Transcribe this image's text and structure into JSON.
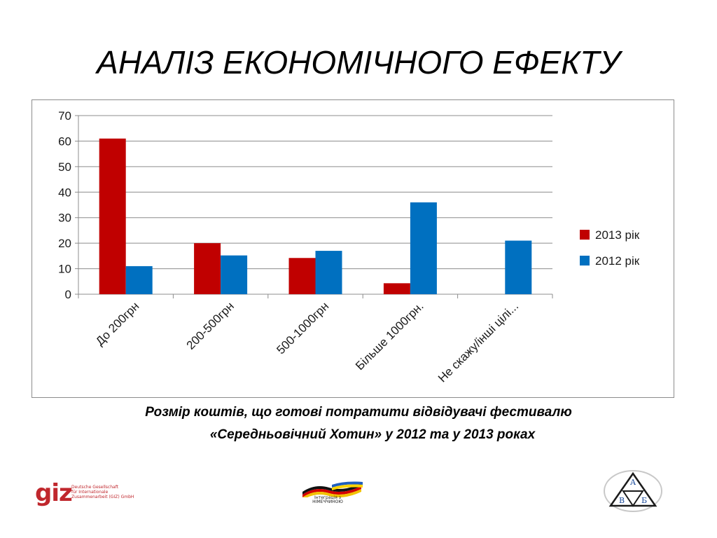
{
  "slide": {
    "title": "АНАЛІЗ ЕКОНОМІЧНОГО ЕФЕКТУ",
    "caption_line1": "Розмір коштів, що готові потратити відвідувачі фестивалю",
    "caption_line2": "«Середньовічний Хотин» у 2012 та у 2013 роках"
  },
  "logos": {
    "giz_mark": "giz",
    "giz_lines": [
      "Deutsche Gesellschaft",
      "für Internationale",
      "Zusammenarbeit (GIZ) GmbH"
    ],
    "center_lines": [
      "Інтеграція з",
      "НІМЕЧЧИНОЮ"
    ],
    "ab_letters": [
      "А",
      "В",
      "Б"
    ]
  },
  "colors": {
    "series_2013": "#c00000",
    "series_2012": "#0070c0"
  },
  "chart_data": {
    "type": "bar",
    "title": "",
    "xlabel": "",
    "ylabel": "",
    "categories": [
      "До 200грн",
      "200-500грн",
      "500-1000грн",
      "Більше 1000грн.",
      "Не скажу/інші цілі..."
    ],
    "series": [
      {
        "name": "2013 рік",
        "values": [
          61,
          20,
          14.2,
          4.3,
          0
        ]
      },
      {
        "name": "2012 рік",
        "values": [
          11,
          15.2,
          17,
          36,
          21
        ]
      }
    ],
    "ylim": [
      0,
      70
    ],
    "yticks": [
      0,
      10,
      20,
      30,
      40,
      50,
      60,
      70
    ],
    "grid": true,
    "legend_position": "right"
  }
}
